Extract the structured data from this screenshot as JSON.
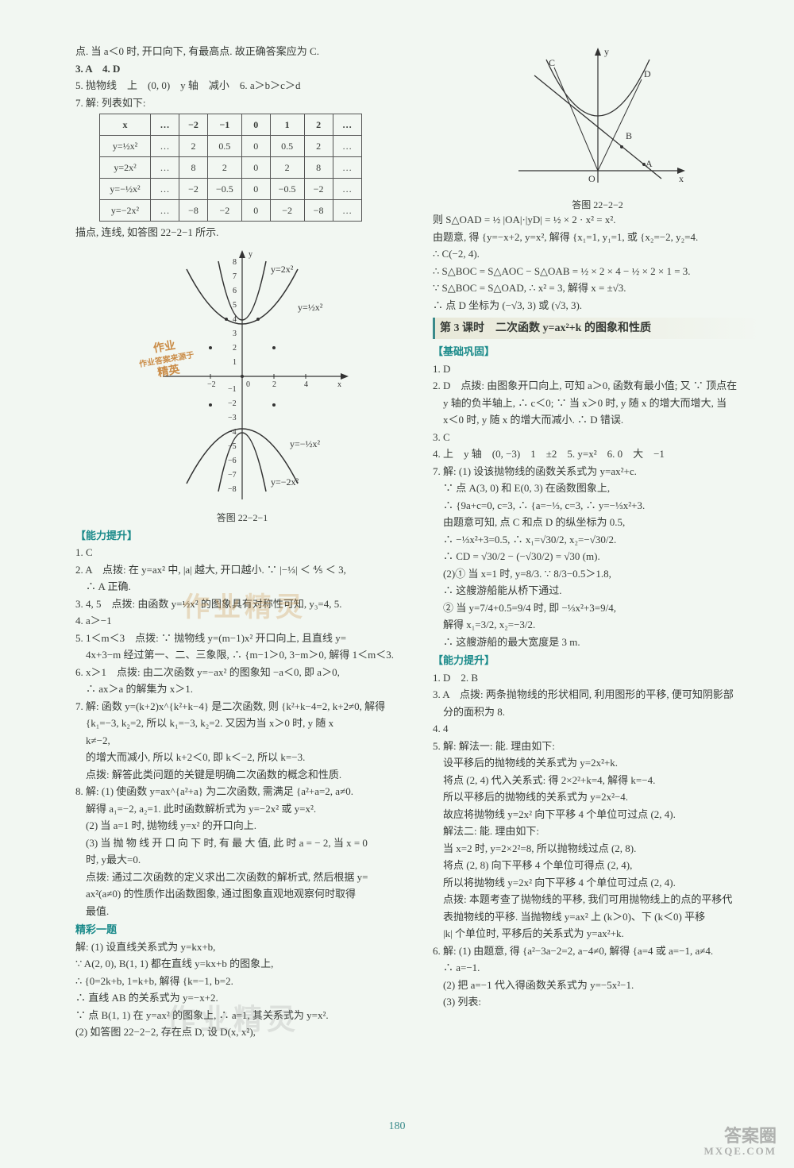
{
  "page_number": "180",
  "left": {
    "top_lines": [
      "点. 当 a＜0 时, 开口向下, 有最高点. 故正确答案应为 C.",
      "3. A　4. D",
      "5. 抛物线　上　(0, 0)　y 轴　减小　6. a＞b＞c＞d",
      "7. 解: 列表如下:"
    ],
    "table": {
      "headers": [
        "x",
        "…",
        "−2",
        "−1",
        "0",
        "1",
        "2",
        "…"
      ],
      "rows": [
        {
          "label": "y=½x²",
          "cells": [
            "…",
            "2",
            "0.5",
            "0",
            "0.5",
            "2",
            "…"
          ]
        },
        {
          "label": "y=2x²",
          "cells": [
            "…",
            "8",
            "2",
            "0",
            "2",
            "8",
            "…"
          ]
        },
        {
          "label": "y=−½x²",
          "cells": [
            "…",
            "−2",
            "−0.5",
            "0",
            "−0.5",
            "−2",
            "…"
          ]
        },
        {
          "label": "y=−2x²",
          "cells": [
            "…",
            "−8",
            "−2",
            "0",
            "−2",
            "−8",
            "…"
          ]
        }
      ]
    },
    "after_table": "描点, 连线, 如答图 22−2−1 所示.",
    "graph1": {
      "caption": "答图 22−2−1",
      "xlabel": "x",
      "ylabel": "y",
      "x_ticks": [
        "−2",
        "0",
        "2",
        "4"
      ],
      "y_ticks_pos": [
        "1",
        "2",
        "3",
        "4",
        "5",
        "6",
        "7",
        "8"
      ],
      "y_ticks_neg": [
        "−1",
        "−2",
        "−3",
        "−4",
        "−5",
        "−6",
        "−7",
        "−8"
      ],
      "curve_labels": [
        "y=2x²",
        "y=½x²",
        "y=−½x²",
        "y=−2x²"
      ],
      "stamp_lines": [
        "作业",
        "作业答案来源于",
        "精英"
      ],
      "axis_color": "#333",
      "curve_color": "#333",
      "bg_color": "#f2f7f2"
    },
    "ability_title": "【能力提升】",
    "ability": [
      "1. C",
      "2. A　点拨: 在 y=ax² 中, |a| 越大, 开口越小. ∵ |−⅓| ＜ ⅘ ＜ 3,",
      "　∴ A 正确.",
      "3. 4, 5　点拨: 由函数 y=½x² 的图象具有对称性可知, y₃=4, 5.",
      "4. a＞−1",
      "5. 1＜m＜3　点拨: ∵ 抛物线 y=(m−1)x² 开口向上, 且直线 y=",
      "　4x+3−m 经过第一、二、三象限, ∴  {m−1＞0, 3−m＞0,  解得 1＜m＜3.",
      "6. x＞1　点拨: 由二次函数 y=−ax² 的图象知 −a＜0, 即 a＞0,",
      "　∴ ax＞a 的解集为 x＞1.",
      "7. 解: 函数 y=(k+2)x^{k²+k−4} 是二次函数, 则 {k²+k−4=2, k+2≠0,  解得",
      "　{k₁=−3, k₂=2,  所以 k₁=−3, k₂=2. 又因为当 x＞0 时, y 随 x",
      "　k≠−2,",
      "　的增大而减小, 所以 k+2＜0, 即 k＜−2, 所以 k=−3.",
      "　点拨: 解答此类问题的关键是明确二次函数的概念和性质.",
      "8. 解: (1) 使函数 y=ax^{a²+a} 为二次函数, 需满足 {a²+a=2, a≠0.",
      "　解得 a₁=−2, a₂=1. 此时函数解析式为 y=−2x² 或 y=x².",
      "　(2) 当 a=1 时, 抛物线 y=x² 的开口向上.",
      "　(3) 当 抛 物 线 开 口 向 下 时, 有 最 大 值, 此 时 a = − 2, 当 x = 0",
      "　时, y最大=0.",
      "　点拨: 通过二次函数的定义求出二次函数的解析式, 然后根据 y=",
      "　ax²(a≠0) 的性质作出函数图象, 通过图象直观地观察何时取得",
      "　最值."
    ],
    "extra_title": "精彩一题",
    "extra": [
      "解: (1) 设直线关系式为 y=kx+b,",
      "∵ A(2, 0), B(1, 1) 都在直线 y=kx+b 的图象上,",
      "∴ {0=2k+b, 1=k+b,  解得 {k=−1, b=2.",
      "∴ 直线 AB 的关系式为 y=−x+2.",
      "∵ 点 B(1, 1) 在 y=ax² 的图象上, ∴ a=1, 其关系式为 y=x².",
      "(2) 如答图 22−2−2, 存在点 D, 设 D(x, x²),"
    ]
  },
  "right": {
    "graph2": {
      "caption": "答图 22−2−2",
      "labels": [
        "C",
        "D",
        "B",
        "A",
        "O",
        "x",
        "y"
      ],
      "axis_color": "#333",
      "bg_color": "#f2f7f2"
    },
    "after_graph": [
      "则 S△OAD = ½ |OA|·|yD| = ½ × 2 · x² = x².",
      "由题意, 得 {y=−x+2, y=x²,  解得 {x₁=1, y₁=1, 或 {x₂=−2, y₂=4.",
      "∴ C(−2, 4).",
      "∴ S△BOC = S△AOC − S△OAB = ½ × 2 × 4 − ½ × 2 × 1 = 3.",
      "∵ S△BOC = S△OAD, ∴ x² = 3, 解得 x = ±√3.",
      "∴ 点 D 坐标为 (−√3, 3) 或 (√3, 3)."
    ],
    "section_title": "第 3 课时　二次函数 y=ax²+k 的图象和性质",
    "basic_title": "【基础巩固】",
    "basic": [
      "1. D",
      "2. D　点拨: 由图象开口向上, 可知 a＞0, 函数有最小值; 又 ∵ 顶点在",
      "　y 轴的负半轴上, ∴ c＜0; ∵ 当 x＞0 时, y 随 x 的增大而增大, 当",
      "　x＜0 时, y 随 x 的增大而减小. ∴ D 错误.",
      "3. C",
      "4. 上　y 轴　(0, −3)　1　±2　5. y=x²　6. 0　大　−1",
      "7. 解: (1) 设该抛物线的函数关系式为 y=ax²+c.",
      "　∵ 点 A(3, 0) 和 E(0, 3) 在函数图象上,",
      "　∴ {9a+c=0, c=3,  ∴ {a=−⅓, c=3,  ∴ y=−⅓x²+3.",
      "　由题意可知, 点 C 和点 D 的纵坐标为 0.5,",
      "　∴ −⅓x²+3=0.5, ∴ x₁=√30/2, x₂=−√30/2.",
      "　∴ CD = √30/2 − (−√30/2) = √30 (m).",
      "　(2)① 当 x=1 时, y=8/3. ∵ 8/3−0.5＞1.8,",
      "　∴ 这艘游船能从桥下通过.",
      "　② 当 y=7/4+0.5=9/4 时, 即 −⅓x²+3=9/4,",
      "　解得 x₁=3/2, x₂=−3/2.",
      "　∴ 这艘游船的最大宽度是 3 m."
    ],
    "ability_title": "【能力提升】",
    "ability": [
      "1. D　2. B",
      "3. A　点拨: 两条抛物线的形状相同, 利用图形的平移, 便可知阴影部",
      "　分的面积为 8.",
      "4. 4",
      "5. 解: 解法一: 能. 理由如下:",
      "　设平移后的抛物线的关系式为 y=2x²+k.",
      "　将点 (2, 4) 代入关系式: 得 2×2²+k=4, 解得 k=−4.",
      "　所以平移后的抛物线的关系式为 y=2x²−4.",
      "　故应将抛物线 y=2x² 向下平移 4 个单位可过点 (2, 4).",
      "　解法二: 能. 理由如下:",
      "　当 x=2 时, y=2×2²=8, 所以抛物线过点 (2, 8).",
      "　将点 (2, 8) 向下平移 4 个单位可得点 (2, 4),",
      "　所以将抛物线 y=2x² 向下平移 4 个单位可过点 (2, 4).",
      "　点拨: 本题考查了抛物线的平移, 我们可用抛物线上的点的平移代",
      "　表抛物线的平移. 当抛物线 y=ax² 上 (k＞0)、下 (k＜0) 平移",
      "　|k| 个单位时, 平移后的关系式为 y=ax²+k.",
      "6. 解: (1) 由题意, 得 {a²−3a−2=2, a−4≠0,  解得 {a=4 或 a=−1, a≠4.",
      "　∴ a=−1.",
      "　(2) 把 a=−1 代入得函数关系式为 y=−5x²−1.",
      "　(3) 列表:"
    ]
  },
  "watermarks": {
    "center1": "作业精灵",
    "center2": "作业精灵",
    "right_main": "答案圈",
    "right_sub": "MXQE.COM"
  }
}
